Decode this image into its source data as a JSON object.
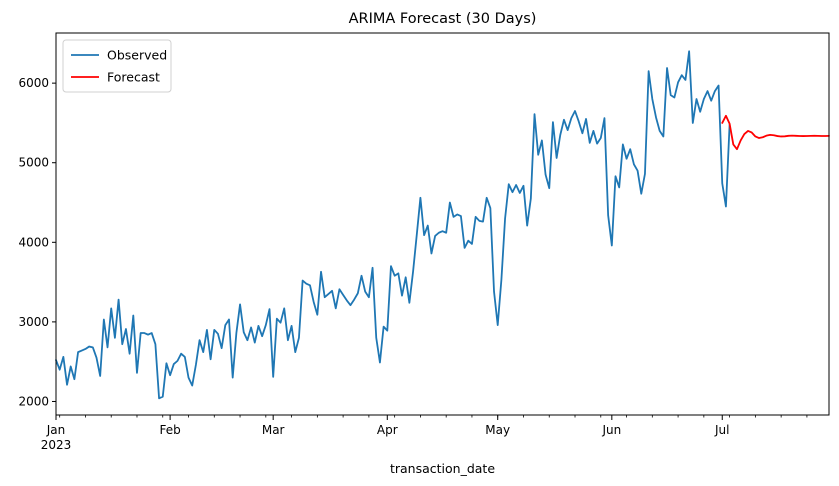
{
  "chart_data": {
    "type": "line",
    "title": "ARIMA Forecast (30 Days)",
    "xlabel": "transaction_date",
    "ylabel": "",
    "x_range": [
      "2023-01-01",
      "2023-07-30"
    ],
    "ylim": [
      1830,
      6630
    ],
    "x_ticks": [
      {
        "date": "2023-01-01",
        "label": "Jan",
        "sublabel": "2023"
      },
      {
        "date": "2023-02-01",
        "label": "Feb",
        "sublabel": ""
      },
      {
        "date": "2023-03-01",
        "label": "Mar",
        "sublabel": ""
      },
      {
        "date": "2023-04-01",
        "label": "Apr",
        "sublabel": ""
      },
      {
        "date": "2023-05-01",
        "label": "May",
        "sublabel": ""
      },
      {
        "date": "2023-06-01",
        "label": "Jun",
        "sublabel": ""
      },
      {
        "date": "2023-07-01",
        "label": "Jul",
        "sublabel": ""
      }
    ],
    "y_ticks": [
      2000,
      3000,
      4000,
      5000,
      6000
    ],
    "legend_position": "top-left",
    "grid": false,
    "series": [
      {
        "name": "Observed",
        "color": "#1f77b4",
        "start_date": "2023-01-01",
        "values": [
          2520,
          2400,
          2560,
          2210,
          2440,
          2280,
          2620,
          2640,
          2660,
          2690,
          2680,
          2550,
          2320,
          3030,
          2680,
          3170,
          2800,
          3280,
          2720,
          2910,
          2600,
          3080,
          2360,
          2860,
          2860,
          2840,
          2860,
          2720,
          2040,
          2060,
          2480,
          2330,
          2470,
          2510,
          2600,
          2560,
          2300,
          2200,
          2460,
          2770,
          2620,
          2900,
          2530,
          2900,
          2850,
          2670,
          2960,
          3030,
          2300,
          2860,
          3220,
          2870,
          2770,
          2930,
          2740,
          2950,
          2820,
          2960,
          3160,
          2310,
          3040,
          2990,
          3170,
          2770,
          2950,
          2620,
          2800,
          3520,
          3480,
          3460,
          3250,
          3090,
          3630,
          3310,
          3350,
          3390,
          3170,
          3410,
          3340,
          3270,
          3210,
          3280,
          3360,
          3580,
          3380,
          3310,
          3680,
          2800,
          2490,
          2940,
          2890,
          3700,
          3580,
          3610,
          3330,
          3560,
          3240,
          3630,
          4090,
          4560,
          4090,
          4210,
          3860,
          4080,
          4120,
          4140,
          4120,
          4500,
          4320,
          4350,
          4330,
          3930,
          4020,
          3980,
          4320,
          4270,
          4260,
          4560,
          4430,
          3380,
          2960,
          3530,
          4300,
          4730,
          4630,
          4720,
          4620,
          4710,
          4210,
          4550,
          5610,
          5100,
          5280,
          4850,
          4680,
          5510,
          5060,
          5350,
          5540,
          5410,
          5560,
          5650,
          5520,
          5370,
          5550,
          5250,
          5400,
          5240,
          5310,
          5560,
          4340,
          3960,
          4830,
          4690,
          5230,
          5050,
          5170,
          4980,
          4900,
          4610,
          4860,
          6150,
          5800,
          5570,
          5400,
          5330,
          6190,
          5850,
          5820,
          6010,
          6100,
          6040,
          6400,
          5500,
          5800,
          5640,
          5800,
          5900,
          5780,
          5900,
          5970,
          4740,
          4450,
          5480
        ]
      },
      {
        "name": "Forecast",
        "color": "#ff0000",
        "start_date": "2023-07-01",
        "values": [
          5500,
          5590,
          5490,
          5230,
          5170,
          5280,
          5360,
          5400,
          5380,
          5330,
          5310,
          5320,
          5340,
          5350,
          5345,
          5335,
          5330,
          5332,
          5338,
          5340,
          5338,
          5336,
          5335,
          5336,
          5337,
          5338,
          5337,
          5336,
          5336,
          5337
        ]
      }
    ]
  }
}
